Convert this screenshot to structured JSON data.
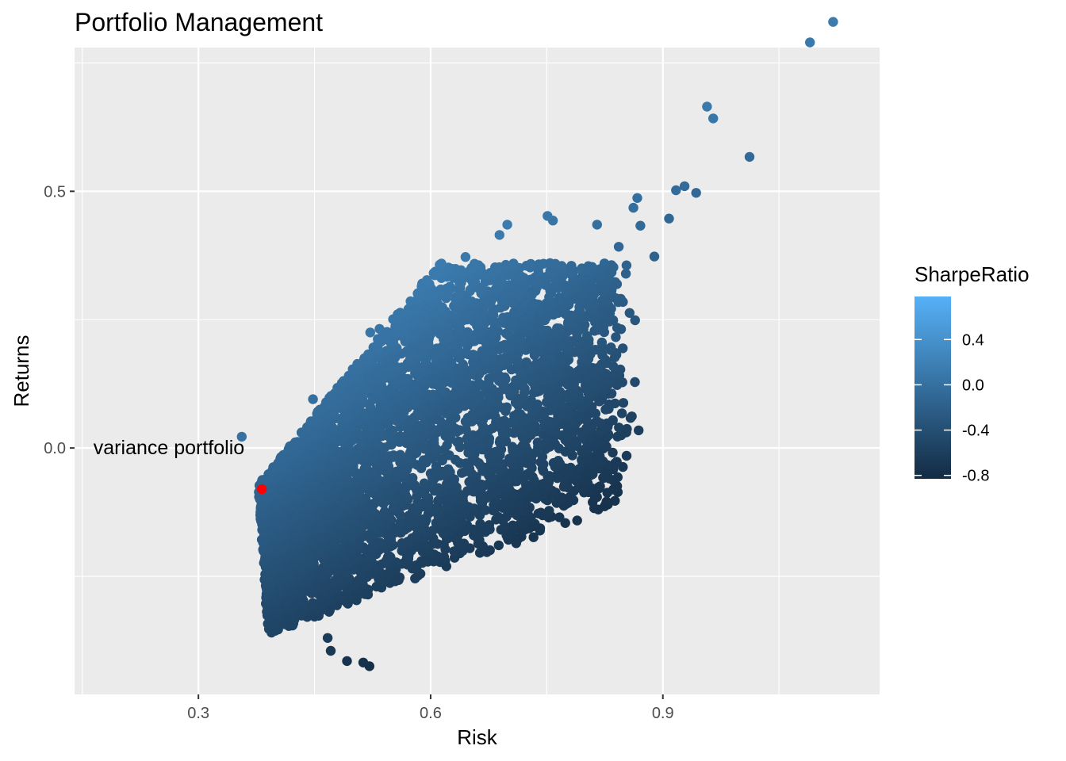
{
  "chart_data": {
    "type": "scatter",
    "title": "Portfolio Management",
    "xlabel": "Risk",
    "ylabel": "Returns",
    "xlim": [
      0.14,
      1.18
    ],
    "ylim": [
      -0.48,
      0.78
    ],
    "x_ticks": [
      0.3,
      0.6,
      0.9
    ],
    "x_tick_labels": [
      "0.3",
      "0.6",
      "0.9"
    ],
    "y_ticks": [
      0.0,
      0.5
    ],
    "y_tick_labels": [
      "0.0",
      "0.5"
    ],
    "grid": true,
    "color_scale": {
      "title": "SharpeRatio",
      "min": -0.83,
      "max": 0.78,
      "low_color": "#132B43",
      "high_color": "#56B1F7",
      "ticks": [
        0.4,
        0.0,
        -0.4,
        -0.8
      ],
      "tick_labels": [
        "0.4",
        "0.0",
        "-0.4",
        "-0.8"
      ]
    },
    "highlight": {
      "x": 0.382,
      "y": -0.08,
      "color": "#FF0000",
      "label": "variance portfolio"
    },
    "notable_points": [
      {
        "x": 1.12,
        "y": 0.83
      },
      {
        "x": 1.09,
        "y": 0.79
      },
      {
        "x": 0.957,
        "y": 0.665
      },
      {
        "x": 0.965,
        "y": 0.642
      },
      {
        "x": 1.012,
        "y": 0.567
      },
      {
        "x": 0.928,
        "y": 0.51
      },
      {
        "x": 0.943,
        "y": 0.497
      },
      {
        "x": 0.917,
        "y": 0.502
      },
      {
        "x": 0.908,
        "y": 0.447
      },
      {
        "x": 0.867,
        "y": 0.487
      },
      {
        "x": 0.862,
        "y": 0.468
      },
      {
        "x": 0.889,
        "y": 0.373
      },
      {
        "x": 0.857,
        "y": 0.263
      },
      {
        "x": 0.843,
        "y": 0.392
      },
      {
        "x": 0.871,
        "y": 0.433
      },
      {
        "x": 0.756,
        "y": 0.045
      },
      {
        "x": 0.756,
        "y": 0.035
      },
      {
        "x": 0.818,
        "y": 0.192
      },
      {
        "x": 0.776,
        "y": 0.132
      },
      {
        "x": 0.627,
        "y": -0.064
      },
      {
        "x": 0.593,
        "y": -0.078
      },
      {
        "x": 0.542,
        "y": -0.188
      },
      {
        "x": 0.497,
        "y": -0.263
      },
      {
        "x": 0.467,
        "y": -0.37
      },
      {
        "x": 0.471,
        "y": -0.395
      },
      {
        "x": 0.492,
        "y": -0.415
      },
      {
        "x": 0.521,
        "y": -0.425
      },
      {
        "x": 0.513,
        "y": -0.418
      },
      {
        "x": 0.356,
        "y": 0.022
      },
      {
        "x": 0.448,
        "y": 0.095
      },
      {
        "x": 0.522,
        "y": 0.225
      },
      {
        "x": 0.534,
        "y": 0.232
      },
      {
        "x": 0.645,
        "y": 0.372
      },
      {
        "x": 0.689,
        "y": 0.415
      },
      {
        "x": 0.699,
        "y": 0.435
      },
      {
        "x": 0.751,
        "y": 0.452
      },
      {
        "x": 0.758,
        "y": 0.443
      },
      {
        "x": 0.815,
        "y": 0.435
      },
      {
        "x": 0.801,
        "y": 0.313
      },
      {
        "x": 0.713,
        "y": 0.184
      },
      {
        "x": 0.741,
        "y": 0.153
      }
    ],
    "cloud": {
      "n": 5000,
      "seed": 7,
      "x_min": 0.378,
      "x_max": 0.83,
      "y_bottom": -0.355,
      "y_top": 0.36
    }
  }
}
